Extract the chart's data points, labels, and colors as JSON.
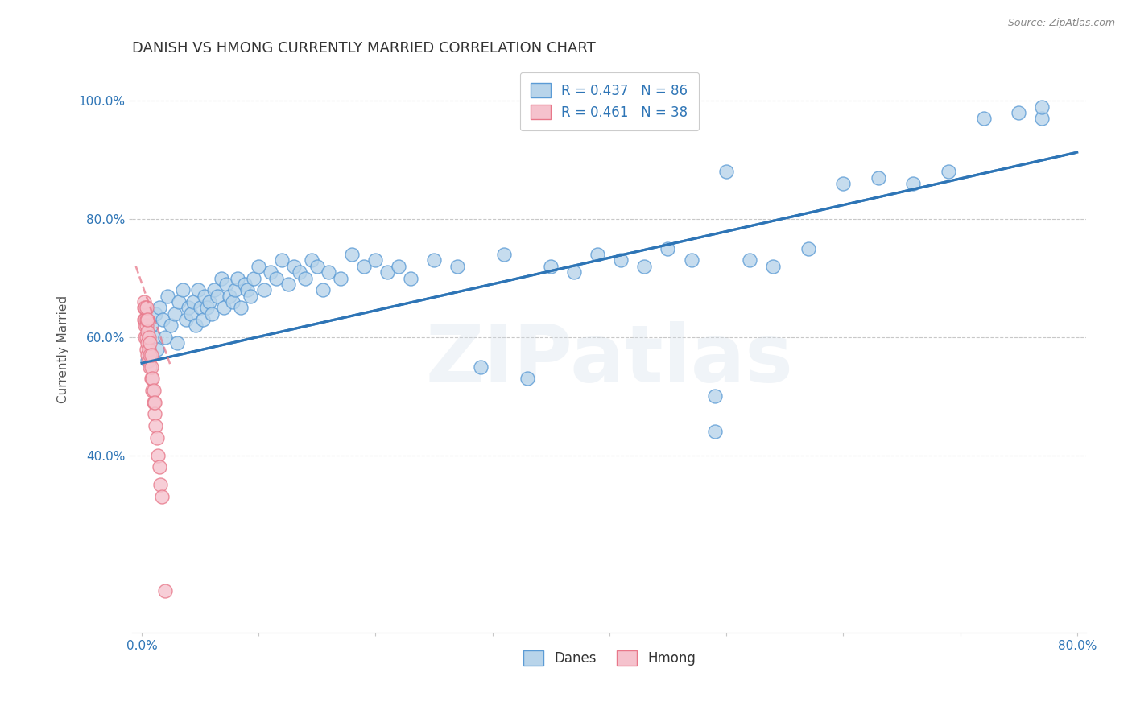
{
  "title": "DANISH VS HMONG CURRENTLY MARRIED CORRELATION CHART",
  "source": "Source: ZipAtlas.com",
  "ylabel_text": "Currently Married",
  "x_min": -0.008,
  "x_max": 0.808,
  "y_min": 0.1,
  "y_max": 1.06,
  "x_ticks": [
    0.0,
    0.1,
    0.2,
    0.3,
    0.4,
    0.5,
    0.6,
    0.7,
    0.8
  ],
  "x_tick_labels": [
    "0.0%",
    "",
    "",
    "",
    "",
    "",
    "",
    "",
    "80.0%"
  ],
  "y_ticks": [
    0.4,
    0.6,
    0.8,
    1.0
  ],
  "y_tick_labels": [
    "40.0%",
    "60.0%",
    "80.0%",
    "100.0%"
  ],
  "danes_R": "0.437",
  "danes_N": "86",
  "hmong_R": "0.461",
  "hmong_N": "38",
  "danes_color": "#b8d4ea",
  "danes_edge_color": "#5b9bd5",
  "hmong_color": "#f5c2cd",
  "hmong_edge_color": "#e8788a",
  "danes_line_color": "#2e75b6",
  "hmong_line_color": "#e8788a",
  "watermark": "ZIPatlas",
  "danes_x": [
    0.005,
    0.008,
    0.01,
    0.012,
    0.013,
    0.015,
    0.018,
    0.02,
    0.022,
    0.025,
    0.028,
    0.03,
    0.032,
    0.035,
    0.038,
    0.04,
    0.042,
    0.044,
    0.046,
    0.048,
    0.05,
    0.052,
    0.054,
    0.056,
    0.058,
    0.06,
    0.062,
    0.065,
    0.068,
    0.07,
    0.072,
    0.075,
    0.078,
    0.08,
    0.082,
    0.085,
    0.088,
    0.09,
    0.093,
    0.096,
    0.1,
    0.105,
    0.11,
    0.115,
    0.12,
    0.125,
    0.13,
    0.135,
    0.14,
    0.145,
    0.15,
    0.155,
    0.16,
    0.17,
    0.18,
    0.19,
    0.2,
    0.21,
    0.22,
    0.23,
    0.25,
    0.27,
    0.29,
    0.31,
    0.33,
    0.35,
    0.37,
    0.39,
    0.41,
    0.43,
    0.45,
    0.47,
    0.49,
    0.52,
    0.54,
    0.57,
    0.6,
    0.63,
    0.66,
    0.69,
    0.72,
    0.75,
    0.77,
    0.49,
    0.5,
    0.77
  ],
  "danes_y": [
    0.56,
    0.62,
    0.6,
    0.64,
    0.58,
    0.65,
    0.63,
    0.6,
    0.67,
    0.62,
    0.64,
    0.59,
    0.66,
    0.68,
    0.63,
    0.65,
    0.64,
    0.66,
    0.62,
    0.68,
    0.65,
    0.63,
    0.67,
    0.65,
    0.66,
    0.64,
    0.68,
    0.67,
    0.7,
    0.65,
    0.69,
    0.67,
    0.66,
    0.68,
    0.7,
    0.65,
    0.69,
    0.68,
    0.67,
    0.7,
    0.72,
    0.68,
    0.71,
    0.7,
    0.73,
    0.69,
    0.72,
    0.71,
    0.7,
    0.73,
    0.72,
    0.68,
    0.71,
    0.7,
    0.74,
    0.72,
    0.73,
    0.71,
    0.72,
    0.7,
    0.73,
    0.72,
    0.55,
    0.74,
    0.53,
    0.72,
    0.71,
    0.74,
    0.73,
    0.72,
    0.75,
    0.73,
    0.44,
    0.73,
    0.72,
    0.75,
    0.86,
    0.87,
    0.86,
    0.88,
    0.97,
    0.98,
    0.97,
    0.5,
    0.88,
    0.99
  ],
  "hmong_x": [
    0.002,
    0.002,
    0.002,
    0.003,
    0.003,
    0.003,
    0.003,
    0.004,
    0.004,
    0.004,
    0.004,
    0.004,
    0.005,
    0.005,
    0.005,
    0.005,
    0.006,
    0.006,
    0.006,
    0.007,
    0.007,
    0.007,
    0.008,
    0.008,
    0.008,
    0.009,
    0.009,
    0.01,
    0.01,
    0.011,
    0.011,
    0.012,
    0.013,
    0.014,
    0.015,
    0.016,
    0.017,
    0.02
  ],
  "hmong_y": [
    0.63,
    0.65,
    0.66,
    0.6,
    0.62,
    0.63,
    0.65,
    0.58,
    0.6,
    0.62,
    0.63,
    0.65,
    0.57,
    0.59,
    0.61,
    0.63,
    0.56,
    0.58,
    0.6,
    0.55,
    0.57,
    0.59,
    0.53,
    0.55,
    0.57,
    0.51,
    0.53,
    0.49,
    0.51,
    0.47,
    0.49,
    0.45,
    0.43,
    0.4,
    0.38,
    0.35,
    0.33,
    0.17
  ],
  "danes_line_x0": 0.0,
  "danes_line_y0": 0.556,
  "danes_line_x1": 0.8,
  "danes_line_y1": 0.913,
  "hmong_line_x0": -0.005,
  "hmong_line_y0": 0.72,
  "hmong_line_x1": 0.025,
  "hmong_line_y1": 0.55
}
